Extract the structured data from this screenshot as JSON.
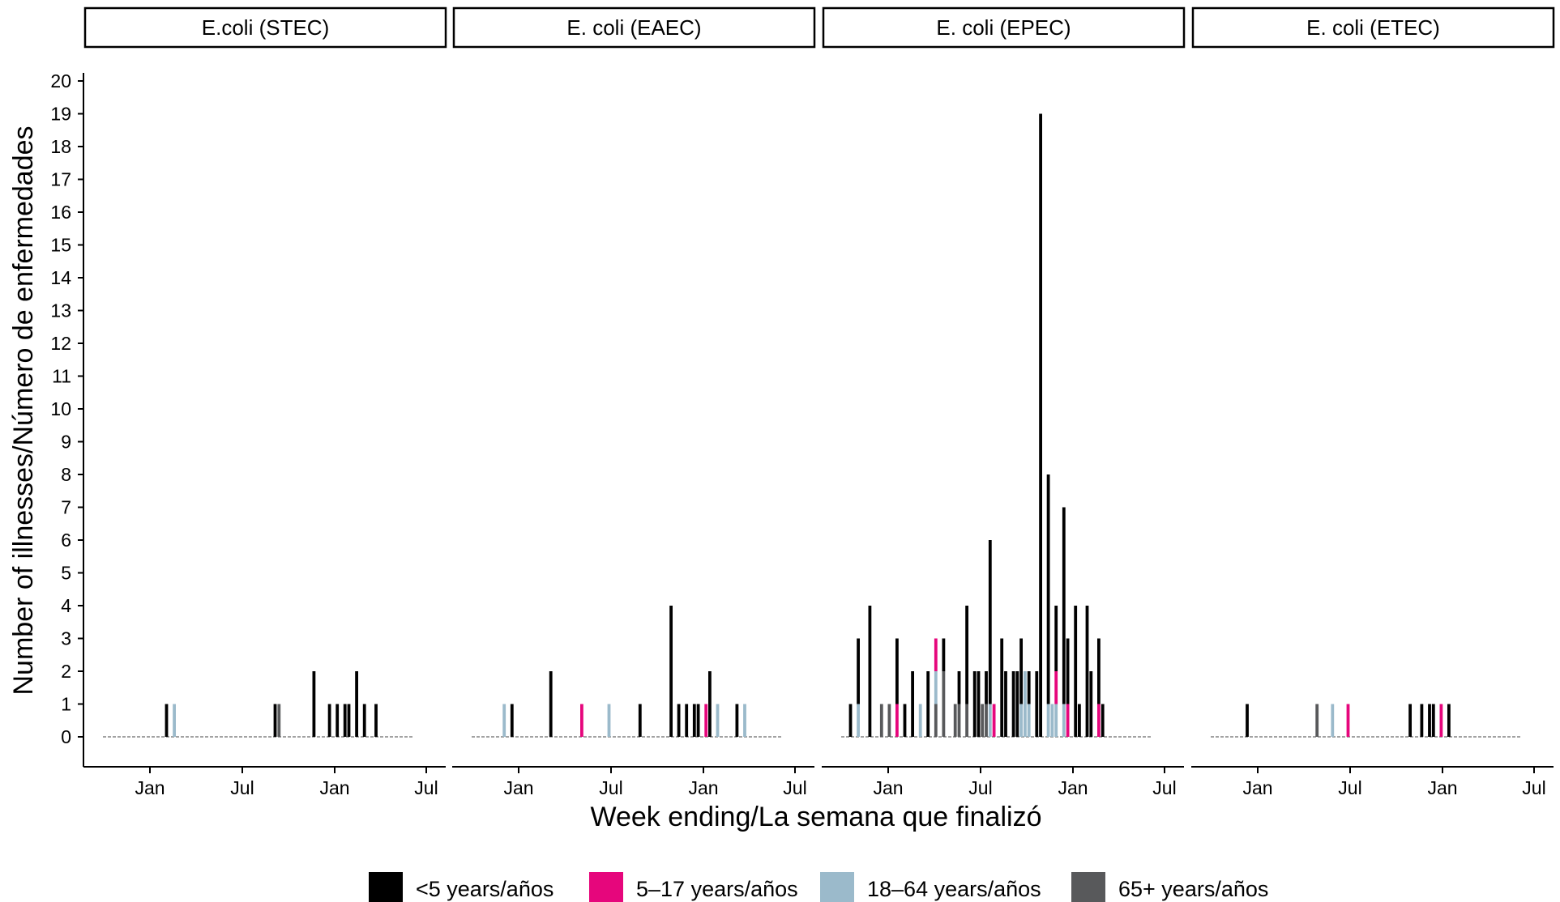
{
  "chart_data": {
    "type": "bar",
    "stacked": true,
    "facet_layout": "1 row x 4 columns, shared y axis",
    "ylabel": "Number of illnesses/Número de enfermedades",
    "xlabel": "Week ending/La semana que finalizó",
    "ylim": [
      0,
      20
    ],
    "y_ticks": [
      "0",
      "1",
      "2",
      "3",
      "4",
      "5",
      "6",
      "7",
      "8",
      "9",
      "10",
      "11",
      "12",
      "13",
      "14",
      "15",
      "16",
      "17",
      "18",
      "19",
      "20"
    ],
    "x_ticks": [
      "Jan",
      "Jul",
      "Jan",
      "Jul"
    ],
    "x_axis_note": "weekly bars spanning roughly two and a half years; tick labels Jan / Jul / Jan / Jul",
    "legend_position": "bottom",
    "legend": [
      {
        "key": "lt5",
        "label": "<5 years/años",
        "color": "#000000"
      },
      {
        "key": "5to17",
        "label": "5–17 years/años",
        "color": "#e6067c"
      },
      {
        "key": "18to64",
        "label": "18–64 years/años",
        "color": "#9bbacb"
      },
      {
        "key": "65plus",
        "label": "65+ years/años",
        "color": "#58595b"
      }
    ],
    "panels": [
      {
        "title": "E.coli (STEC)",
        "series": {
          "lt5": [
            {
              "week": 16,
              "y": 1
            },
            {
              "week": 44,
              "y": 1
            },
            {
              "week": 54,
              "y": 2
            },
            {
              "week": 58,
              "y": 1
            },
            {
              "week": 60,
              "y": 1
            },
            {
              "week": 62,
              "y": 1
            },
            {
              "week": 63,
              "y": 1
            },
            {
              "week": 65,
              "y": 2
            },
            {
              "week": 67,
              "y": 1
            },
            {
              "week": 70,
              "y": 1
            }
          ],
          "5to17": [],
          "18to64": [
            {
              "week": 18,
              "y": 1
            }
          ],
          "65plus": [
            {
              "week": 45,
              "y": 1
            }
          ]
        }
      },
      {
        "title": "E. coli (EAEC)",
        "series": {
          "lt5": [
            {
              "week": 10,
              "y": 1
            },
            {
              "week": 20,
              "y": 2
            },
            {
              "week": 43,
              "y": 1
            },
            {
              "week": 51,
              "y": 4
            },
            {
              "week": 53,
              "y": 1
            },
            {
              "week": 55,
              "y": 1
            },
            {
              "week": 57,
              "y": 1
            },
            {
              "week": 58,
              "y": 1
            },
            {
              "week": 61,
              "y": 2
            },
            {
              "week": 68,
              "y": 1
            }
          ],
          "5to17": [
            {
              "week": 28,
              "y": 1
            },
            {
              "week": 60,
              "y": 1
            }
          ],
          "18to64": [
            {
              "week": 8,
              "y": 1
            },
            {
              "week": 35,
              "y": 1
            },
            {
              "week": 63,
              "y": 1
            },
            {
              "week": 70,
              "y": 1
            }
          ],
          "65plus": []
        }
      },
      {
        "title": "E. coli (EPEC)",
        "series": {
          "lt5": [
            {
              "week": 2,
              "y": 1
            },
            {
              "week": 4,
              "y": 2
            },
            {
              "week": 7,
              "y": 4
            },
            {
              "week": 14,
              "y": 2
            },
            {
              "week": 16,
              "y": 1
            },
            {
              "week": 18,
              "y": 2
            },
            {
              "week": 22,
              "y": 2
            },
            {
              "week": 26,
              "y": 1
            },
            {
              "week": 30,
              "y": 1
            },
            {
              "week": 32,
              "y": 3
            },
            {
              "week": 34,
              "y": 2
            },
            {
              "week": 35,
              "y": 2
            },
            {
              "week": 37,
              "y": 1
            },
            {
              "week": 38,
              "y": 5
            },
            {
              "week": 41,
              "y": 3
            },
            {
              "week": 42,
              "y": 2
            },
            {
              "week": 44,
              "y": 2
            },
            {
              "week": 45,
              "y": 2
            },
            {
              "week": 46,
              "y": 2
            },
            {
              "week": 48,
              "y": 1
            },
            {
              "week": 50,
              "y": 2
            },
            {
              "week": 51,
              "y": 19
            },
            {
              "week": 53,
              "y": 7
            },
            {
              "week": 55,
              "y": 2
            },
            {
              "week": 57,
              "y": 6
            },
            {
              "week": 58,
              "y": 2
            },
            {
              "week": 60,
              "y": 4
            },
            {
              "week": 61,
              "y": 1
            },
            {
              "week": 63,
              "y": 4
            },
            {
              "week": 64,
              "y": 2
            },
            {
              "week": 66,
              "y": 2
            },
            {
              "week": 67,
              "y": 1
            }
          ],
          "5to17": [
            {
              "week": 14,
              "y": 1
            },
            {
              "week": 24,
              "y": 1
            },
            {
              "week": 39,
              "y": 1
            },
            {
              "week": 55,
              "y": 1
            },
            {
              "week": 58,
              "y": 1
            },
            {
              "week": 66,
              "y": 1
            }
          ],
          "18to64": [
            {
              "week": 4,
              "y": 1
            },
            {
              "week": 20,
              "y": 1
            },
            {
              "week": 24,
              "y": 1
            },
            {
              "week": 38,
              "y": 1
            },
            {
              "week": 46,
              "y": 1
            },
            {
              "week": 47,
              "y": 2
            },
            {
              "week": 48,
              "y": 1
            },
            {
              "week": 53,
              "y": 1
            },
            {
              "week": 54,
              "y": 1
            },
            {
              "week": 55,
              "y": 1
            },
            {
              "week": 57,
              "y": 1
            }
          ],
          "65plus": [
            {
              "week": 10,
              "y": 1
            },
            {
              "week": 12,
              "y": 1
            },
            {
              "week": 24,
              "y": 1
            },
            {
              "week": 26,
              "y": 2
            },
            {
              "week": 29,
              "y": 1
            },
            {
              "week": 30,
              "y": 1
            },
            {
              "week": 32,
              "y": 1
            },
            {
              "week": 36,
              "y": 1
            },
            {
              "week": 37,
              "y": 1
            }
          ]
        }
      },
      {
        "title": "E. coli (ETEC)",
        "series": {
          "lt5": [
            {
              "week": 9,
              "y": 1
            },
            {
              "week": 51,
              "y": 1
            },
            {
              "week": 54,
              "y": 1
            },
            {
              "week": 56,
              "y": 1
            },
            {
              "week": 57,
              "y": 1
            },
            {
              "week": 61,
              "y": 1
            }
          ],
          "5to17": [
            {
              "week": 35,
              "y": 1
            },
            {
              "week": 59,
              "y": 1
            }
          ],
          "18to64": [
            {
              "week": 31,
              "y": 1
            }
          ],
          "65plus": [
            {
              "week": 27,
              "y": 1
            }
          ]
        }
      }
    ]
  }
}
